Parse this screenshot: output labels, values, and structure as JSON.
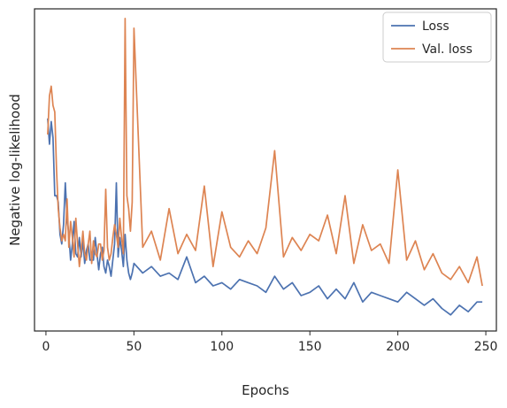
{
  "chart_data": {
    "type": "line",
    "title": "",
    "xlabel": "Epochs",
    "ylabel": "Negative log-likelihood",
    "xlim": [
      -6.5,
      256
    ],
    "ylim": [
      0.0,
      1.0
    ],
    "xticks": [
      0,
      50,
      100,
      150,
      200,
      250
    ],
    "yticks_visible": false,
    "grid": false,
    "legend_position": "top-right",
    "series": [
      {
        "name": "Loss",
        "color": "#4c72b0",
        "x": [
          1,
          2,
          3,
          4,
          5,
          6,
          7,
          8,
          9,
          10,
          11,
          12,
          13,
          14,
          15,
          16,
          17,
          18,
          19,
          20,
          21,
          22,
          23,
          24,
          25,
          26,
          27,
          28,
          29,
          30,
          31,
          32,
          33,
          34,
          35,
          36,
          37,
          38,
          39,
          40,
          41,
          42,
          43,
          44,
          45,
          46,
          47,
          48,
          49,
          50,
          55,
          60,
          65,
          70,
          75,
          80,
          85,
          90,
          95,
          100,
          105,
          110,
          115,
          120,
          125,
          130,
          135,
          140,
          145,
          150,
          155,
          160,
          165,
          170,
          175,
          180,
          185,
          190,
          195,
          200,
          205,
          210,
          215,
          220,
          225,
          230,
          235,
          240,
          245,
          248
        ],
        "values": [
          0.66,
          0.58,
          0.65,
          0.6,
          0.42,
          0.42,
          0.4,
          0.3,
          0.27,
          0.33,
          0.46,
          0.35,
          0.3,
          0.22,
          0.27,
          0.34,
          0.24,
          0.23,
          0.29,
          0.23,
          0.28,
          0.21,
          0.25,
          0.27,
          0.22,
          0.22,
          0.22,
          0.29,
          0.24,
          0.19,
          0.24,
          0.26,
          0.2,
          0.18,
          0.22,
          0.2,
          0.17,
          0.22,
          0.27,
          0.46,
          0.23,
          0.29,
          0.25,
          0.2,
          0.3,
          0.22,
          0.18,
          0.16,
          0.18,
          0.21,
          0.18,
          0.2,
          0.17,
          0.18,
          0.16,
          0.23,
          0.15,
          0.17,
          0.14,
          0.15,
          0.13,
          0.16,
          0.15,
          0.14,
          0.12,
          0.17,
          0.13,
          0.15,
          0.11,
          0.12,
          0.14,
          0.1,
          0.13,
          0.1,
          0.15,
          0.09,
          0.12,
          0.11,
          0.1,
          0.09,
          0.12,
          0.1,
          0.08,
          0.1,
          0.07,
          0.05,
          0.08,
          0.06,
          0.09,
          0.09
        ]
      },
      {
        "name": "Val. loss",
        "color": "#dd8452",
        "x": [
          1,
          2,
          3,
          4,
          5,
          6,
          7,
          8,
          9,
          10,
          11,
          12,
          13,
          14,
          15,
          16,
          17,
          18,
          19,
          20,
          21,
          22,
          23,
          24,
          25,
          26,
          27,
          28,
          29,
          30,
          31,
          32,
          33,
          34,
          35,
          36,
          37,
          38,
          39,
          40,
          41,
          42,
          43,
          44,
          45,
          46,
          47,
          48,
          49,
          50,
          55,
          60,
          65,
          70,
          75,
          80,
          85,
          90,
          95,
          100,
          105,
          110,
          115,
          120,
          125,
          130,
          135,
          140,
          145,
          150,
          155,
          160,
          165,
          170,
          175,
          180,
          185,
          190,
          195,
          200,
          205,
          210,
          215,
          220,
          225,
          230,
          235,
          240,
          245,
          248
        ],
        "values": [
          0.61,
          0.73,
          0.76,
          0.7,
          0.68,
          0.5,
          0.38,
          0.32,
          0.28,
          0.3,
          0.28,
          0.41,
          0.26,
          0.34,
          0.29,
          0.23,
          0.35,
          0.27,
          0.2,
          0.25,
          0.31,
          0.24,
          0.22,
          0.27,
          0.31,
          0.21,
          0.28,
          0.24,
          0.23,
          0.27,
          0.27,
          0.22,
          0.25,
          0.44,
          0.26,
          0.22,
          0.24,
          0.29,
          0.33,
          0.3,
          0.26,
          0.35,
          0.29,
          0.24,
          0.97,
          0.42,
          0.38,
          0.31,
          0.4,
          0.94,
          0.26,
          0.31,
          0.22,
          0.38,
          0.24,
          0.3,
          0.25,
          0.45,
          0.2,
          0.37,
          0.26,
          0.23,
          0.28,
          0.24,
          0.32,
          0.56,
          0.23,
          0.29,
          0.25,
          0.3,
          0.28,
          0.36,
          0.24,
          0.42,
          0.21,
          0.33,
          0.25,
          0.27,
          0.21,
          0.5,
          0.22,
          0.28,
          0.19,
          0.24,
          0.18,
          0.16,
          0.2,
          0.15,
          0.23,
          0.14
        ]
      }
    ]
  }
}
